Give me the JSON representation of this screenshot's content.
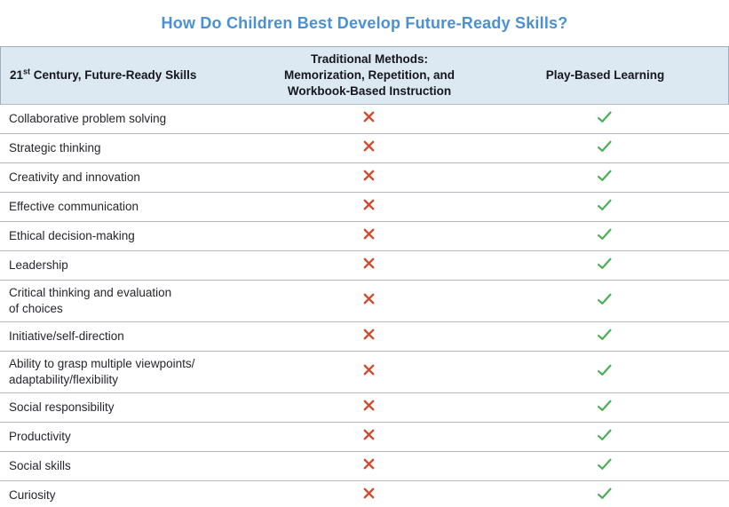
{
  "title": "How Do Children Best Develop Future-Ready Skills?",
  "table": {
    "header": {
      "skills": {
        "num": "21",
        "sup": "st",
        "rest": " Century, Future-Ready Skills"
      },
      "traditional": "Traditional Methods:\nMemorization, Repetition, and\nWorkbook-Based Instruction",
      "play_based": "Play-Based Learning"
    },
    "rows": [
      {
        "skill": "Collaborative problem solving",
        "traditional": "cross",
        "play_based": "check"
      },
      {
        "skill": "Strategic thinking",
        "traditional": "cross",
        "play_based": "check"
      },
      {
        "skill": "Creativity and innovation",
        "traditional": "cross",
        "play_based": "check"
      },
      {
        "skill": "Effective communication",
        "traditional": "cross",
        "play_based": "check"
      },
      {
        "skill": "Ethical decision-making",
        "traditional": "cross",
        "play_based": "check"
      },
      {
        "skill": "Leadership",
        "traditional": "cross",
        "play_based": "check"
      },
      {
        "skill": "Critical thinking and evaluation\nof choices",
        "traditional": "cross",
        "play_based": "check"
      },
      {
        "skill": "Initiative/self-direction",
        "traditional": "cross",
        "play_based": "check"
      },
      {
        "skill": "Ability to grasp multiple viewpoints/\nadaptability/flexibility",
        "traditional": "cross",
        "play_based": "check"
      },
      {
        "skill": "Social responsibility",
        "traditional": "cross",
        "play_based": "check"
      },
      {
        "skill": "Productivity",
        "traditional": "cross",
        "play_based": "check"
      },
      {
        "skill": "Social skills",
        "traditional": "cross",
        "play_based": "check"
      },
      {
        "skill": "Curiosity",
        "traditional": "cross",
        "play_based": "check"
      }
    ]
  },
  "icons": {
    "cross": "x-mark",
    "check": "check-mark"
  },
  "colors": {
    "title": "#4a90d5",
    "header_bg": "#dce8f2",
    "header_border": "#a3aebc",
    "header_text": "#16161f",
    "body_text": "#26262b",
    "divider": "#b5bac0",
    "cross": "#d04b2e",
    "check": "#4caf57",
    "background": "#ffffff"
  }
}
